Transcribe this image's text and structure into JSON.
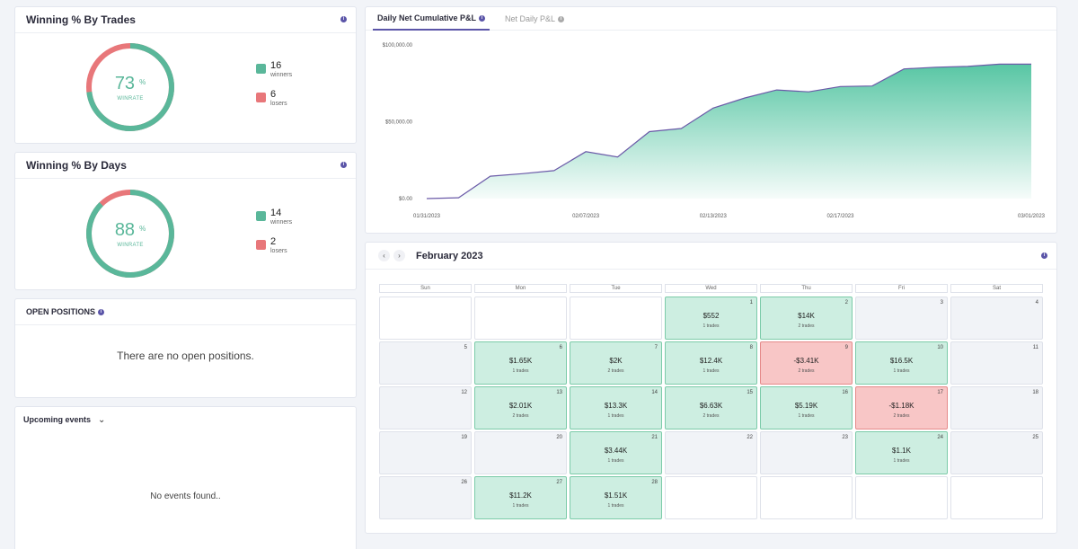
{
  "winning_trades": {
    "title": "Winning % By Trades",
    "value": "73",
    "pct": "%",
    "label": "WINRATE",
    "winners": "16",
    "winners_label": "winners",
    "losers": "6",
    "losers_label": "losers",
    "fraction": 0.73
  },
  "winning_days": {
    "title": "Winning % By Days",
    "value": "88",
    "pct": "%",
    "label": "WINRATE",
    "winners": "14",
    "winners_label": "winners",
    "losers": "2",
    "losers_label": "losers",
    "fraction": 0.875
  },
  "open_positions": {
    "title": "OPEN POSITIONS",
    "empty_message": "There are no open positions."
  },
  "events": {
    "title": "Upcoming events",
    "empty_message": "No events found.."
  },
  "colors": {
    "win": "#5ab79a",
    "loss": "#e8777a",
    "accent": "#5b55a8"
  },
  "chart_tabs": [
    {
      "label": "Daily Net Cumulative P&L"
    },
    {
      "label": "Net Daily P&L"
    }
  ],
  "chart_data": {
    "type": "area",
    "title": "Daily Net Cumulative P&L",
    "y_tick_labels": [
      "$100,000.00",
      "$50,000.00",
      "$0.00"
    ],
    "y_ticks": [
      100000,
      50000,
      0
    ],
    "ylim": [
      0,
      100000
    ],
    "x_tick_labels": [
      "01/31/2023",
      "02/07/2023",
      "02/13/2023",
      "02/17/2023",
      "03/01/2023"
    ],
    "x": [
      "01/31",
      "02/01",
      "02/02",
      "02/03",
      "02/06",
      "02/07",
      "02/08",
      "02/09",
      "02/10",
      "02/13",
      "02/14",
      "02/15",
      "02/16",
      "02/17",
      "02/21",
      "02/22",
      "02/24",
      "02/27",
      "02/28",
      "03/01"
    ],
    "values": [
      0,
      552,
      14552,
      16200,
      18200,
      30500,
      27090,
      43590,
      45600,
      58900,
      65500,
      70700,
      69500,
      72900,
      73300,
      84400,
      85500,
      86000,
      87510,
      87510
    ]
  },
  "calendar": {
    "title": "February 2023",
    "weekdays": [
      "Sun",
      "Mon",
      "Tue",
      "Wed",
      "Thu",
      "Fri",
      "Sat"
    ],
    "weeks": [
      [
        {
          "type": "blank"
        },
        {
          "type": "blank"
        },
        {
          "type": "blank"
        },
        {
          "type": "win",
          "day": "1",
          "value": "$552",
          "trades": "1 trades"
        },
        {
          "type": "win",
          "day": "2",
          "value": "$14K",
          "trades": "2 trades"
        },
        {
          "type": "empty",
          "day": "3"
        },
        {
          "type": "empty",
          "day": "4"
        }
      ],
      [
        {
          "type": "empty",
          "day": "5"
        },
        {
          "type": "win",
          "day": "6",
          "value": "$1.65K",
          "trades": "1 trades"
        },
        {
          "type": "win",
          "day": "7",
          "value": "$2K",
          "trades": "2 trades"
        },
        {
          "type": "win",
          "day": "8",
          "value": "$12.4K",
          "trades": "1 trades"
        },
        {
          "type": "loss",
          "day": "9",
          "value": "-$3.41K",
          "trades": "2 trades"
        },
        {
          "type": "win",
          "day": "10",
          "value": "$16.5K",
          "trades": "1 trades"
        },
        {
          "type": "empty",
          "day": "11"
        }
      ],
      [
        {
          "type": "empty",
          "day": "12"
        },
        {
          "type": "win",
          "day": "13",
          "value": "$2.01K",
          "trades": "2 trades"
        },
        {
          "type": "win",
          "day": "14",
          "value": "$13.3K",
          "trades": "1 trades"
        },
        {
          "type": "win",
          "day": "15",
          "value": "$6.63K",
          "trades": "2 trades"
        },
        {
          "type": "win",
          "day": "16",
          "value": "$5.19K",
          "trades": "1 trades"
        },
        {
          "type": "loss",
          "day": "17",
          "value": "-$1.18K",
          "trades": "2 trades"
        },
        {
          "type": "empty",
          "day": "18"
        }
      ],
      [
        {
          "type": "empty",
          "day": "19"
        },
        {
          "type": "empty",
          "day": "20"
        },
        {
          "type": "win",
          "day": "21",
          "value": "$3.44K",
          "trades": "1 trades"
        },
        {
          "type": "empty",
          "day": "22"
        },
        {
          "type": "empty",
          "day": "23"
        },
        {
          "type": "win",
          "day": "24",
          "value": "$1.1K",
          "trades": "1 trades"
        },
        {
          "type": "empty",
          "day": "25"
        }
      ],
      [
        {
          "type": "empty",
          "day": "26"
        },
        {
          "type": "win",
          "day": "27",
          "value": "$11.2K",
          "trades": "1 trades"
        },
        {
          "type": "win",
          "day": "28",
          "value": "$1.51K",
          "trades": "1 trades"
        },
        {
          "type": "blank"
        },
        {
          "type": "blank"
        },
        {
          "type": "blank"
        },
        {
          "type": "blank"
        }
      ]
    ]
  }
}
